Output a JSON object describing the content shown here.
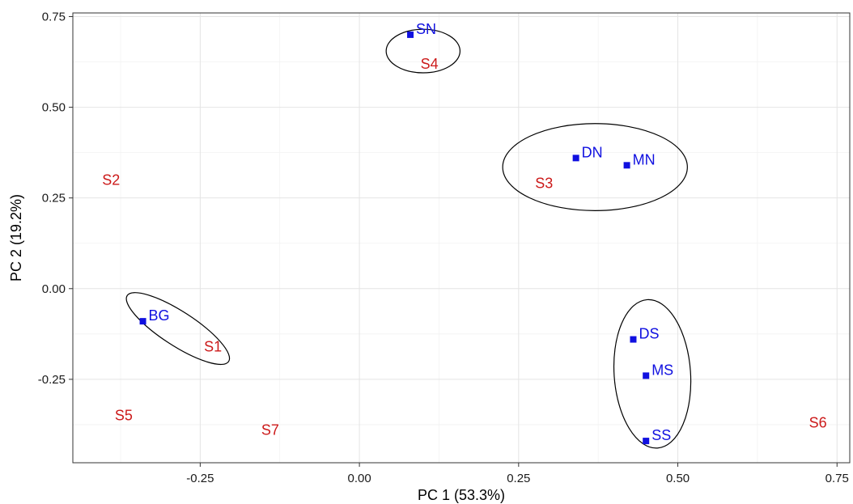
{
  "chart_data": {
    "type": "scatter",
    "title": "",
    "xlabel": "PC 1 (53.3%)",
    "ylabel": "PC 2 (19.2%)",
    "xlim": [
      -0.45,
      0.77
    ],
    "ylim": [
      -0.48,
      0.76
    ],
    "xticks": [
      -0.25,
      0.0,
      0.25,
      0.5,
      0.75
    ],
    "xtick_labels": [
      "-0.25",
      "0.00",
      "0.25",
      "0.50",
      "0.75"
    ],
    "yticks": [
      -0.25,
      0.0,
      0.25,
      0.5,
      0.75
    ],
    "ytick_labels": [
      "-0.25",
      "0.00",
      "0.25",
      "0.50",
      "0.75"
    ],
    "grid": true,
    "series": [
      {
        "marker": "square",
        "color": "#1010e0",
        "points": [
          {
            "label": "SN",
            "x": 0.08,
            "y": 0.7
          },
          {
            "label": "DN",
            "x": 0.34,
            "y": 0.36
          },
          {
            "label": "MN",
            "x": 0.42,
            "y": 0.34
          },
          {
            "label": "BG",
            "x": -0.34,
            "y": -0.09
          },
          {
            "label": "DS",
            "x": 0.43,
            "y": -0.14
          },
          {
            "label": "MS",
            "x": 0.45,
            "y": -0.24
          },
          {
            "label": "SS",
            "x": 0.45,
            "y": -0.42
          }
        ]
      },
      {
        "marker": "none",
        "color": "#cc1a1a",
        "points": [
          {
            "label": "S1",
            "x": -0.23,
            "y": -0.16
          },
          {
            "label": "S2",
            "x": -0.39,
            "y": 0.3
          },
          {
            "label": "S3",
            "x": 0.29,
            "y": 0.29
          },
          {
            "label": "S4",
            "x": 0.11,
            "y": 0.62
          },
          {
            "label": "S5",
            "x": -0.37,
            "y": -0.35
          },
          {
            "label": "S6",
            "x": 0.72,
            "y": -0.37
          },
          {
            "label": "S7",
            "x": -0.14,
            "y": -0.39
          }
        ]
      }
    ],
    "ellipses": [
      {
        "group": [
          "SN",
          "S4"
        ],
        "cx": 0.1,
        "cy": 0.655,
        "rx": 0.058,
        "ry": 0.06,
        "angle": 0
      },
      {
        "group": [
          "DN",
          "MN",
          "S3"
        ],
        "cx": 0.37,
        "cy": 0.335,
        "rx": 0.145,
        "ry": 0.12,
        "angle": 0
      },
      {
        "group": [
          "BG",
          "S1"
        ],
        "cx": -0.285,
        "cy": -0.11,
        "rx": 0.095,
        "ry": 0.047,
        "angle": 33
      },
      {
        "group": [
          "DS",
          "MS",
          "SS"
        ],
        "cx": 0.46,
        "cy": -0.235,
        "rx": 0.06,
        "ry": 0.205,
        "angle": -4
      }
    ]
  }
}
